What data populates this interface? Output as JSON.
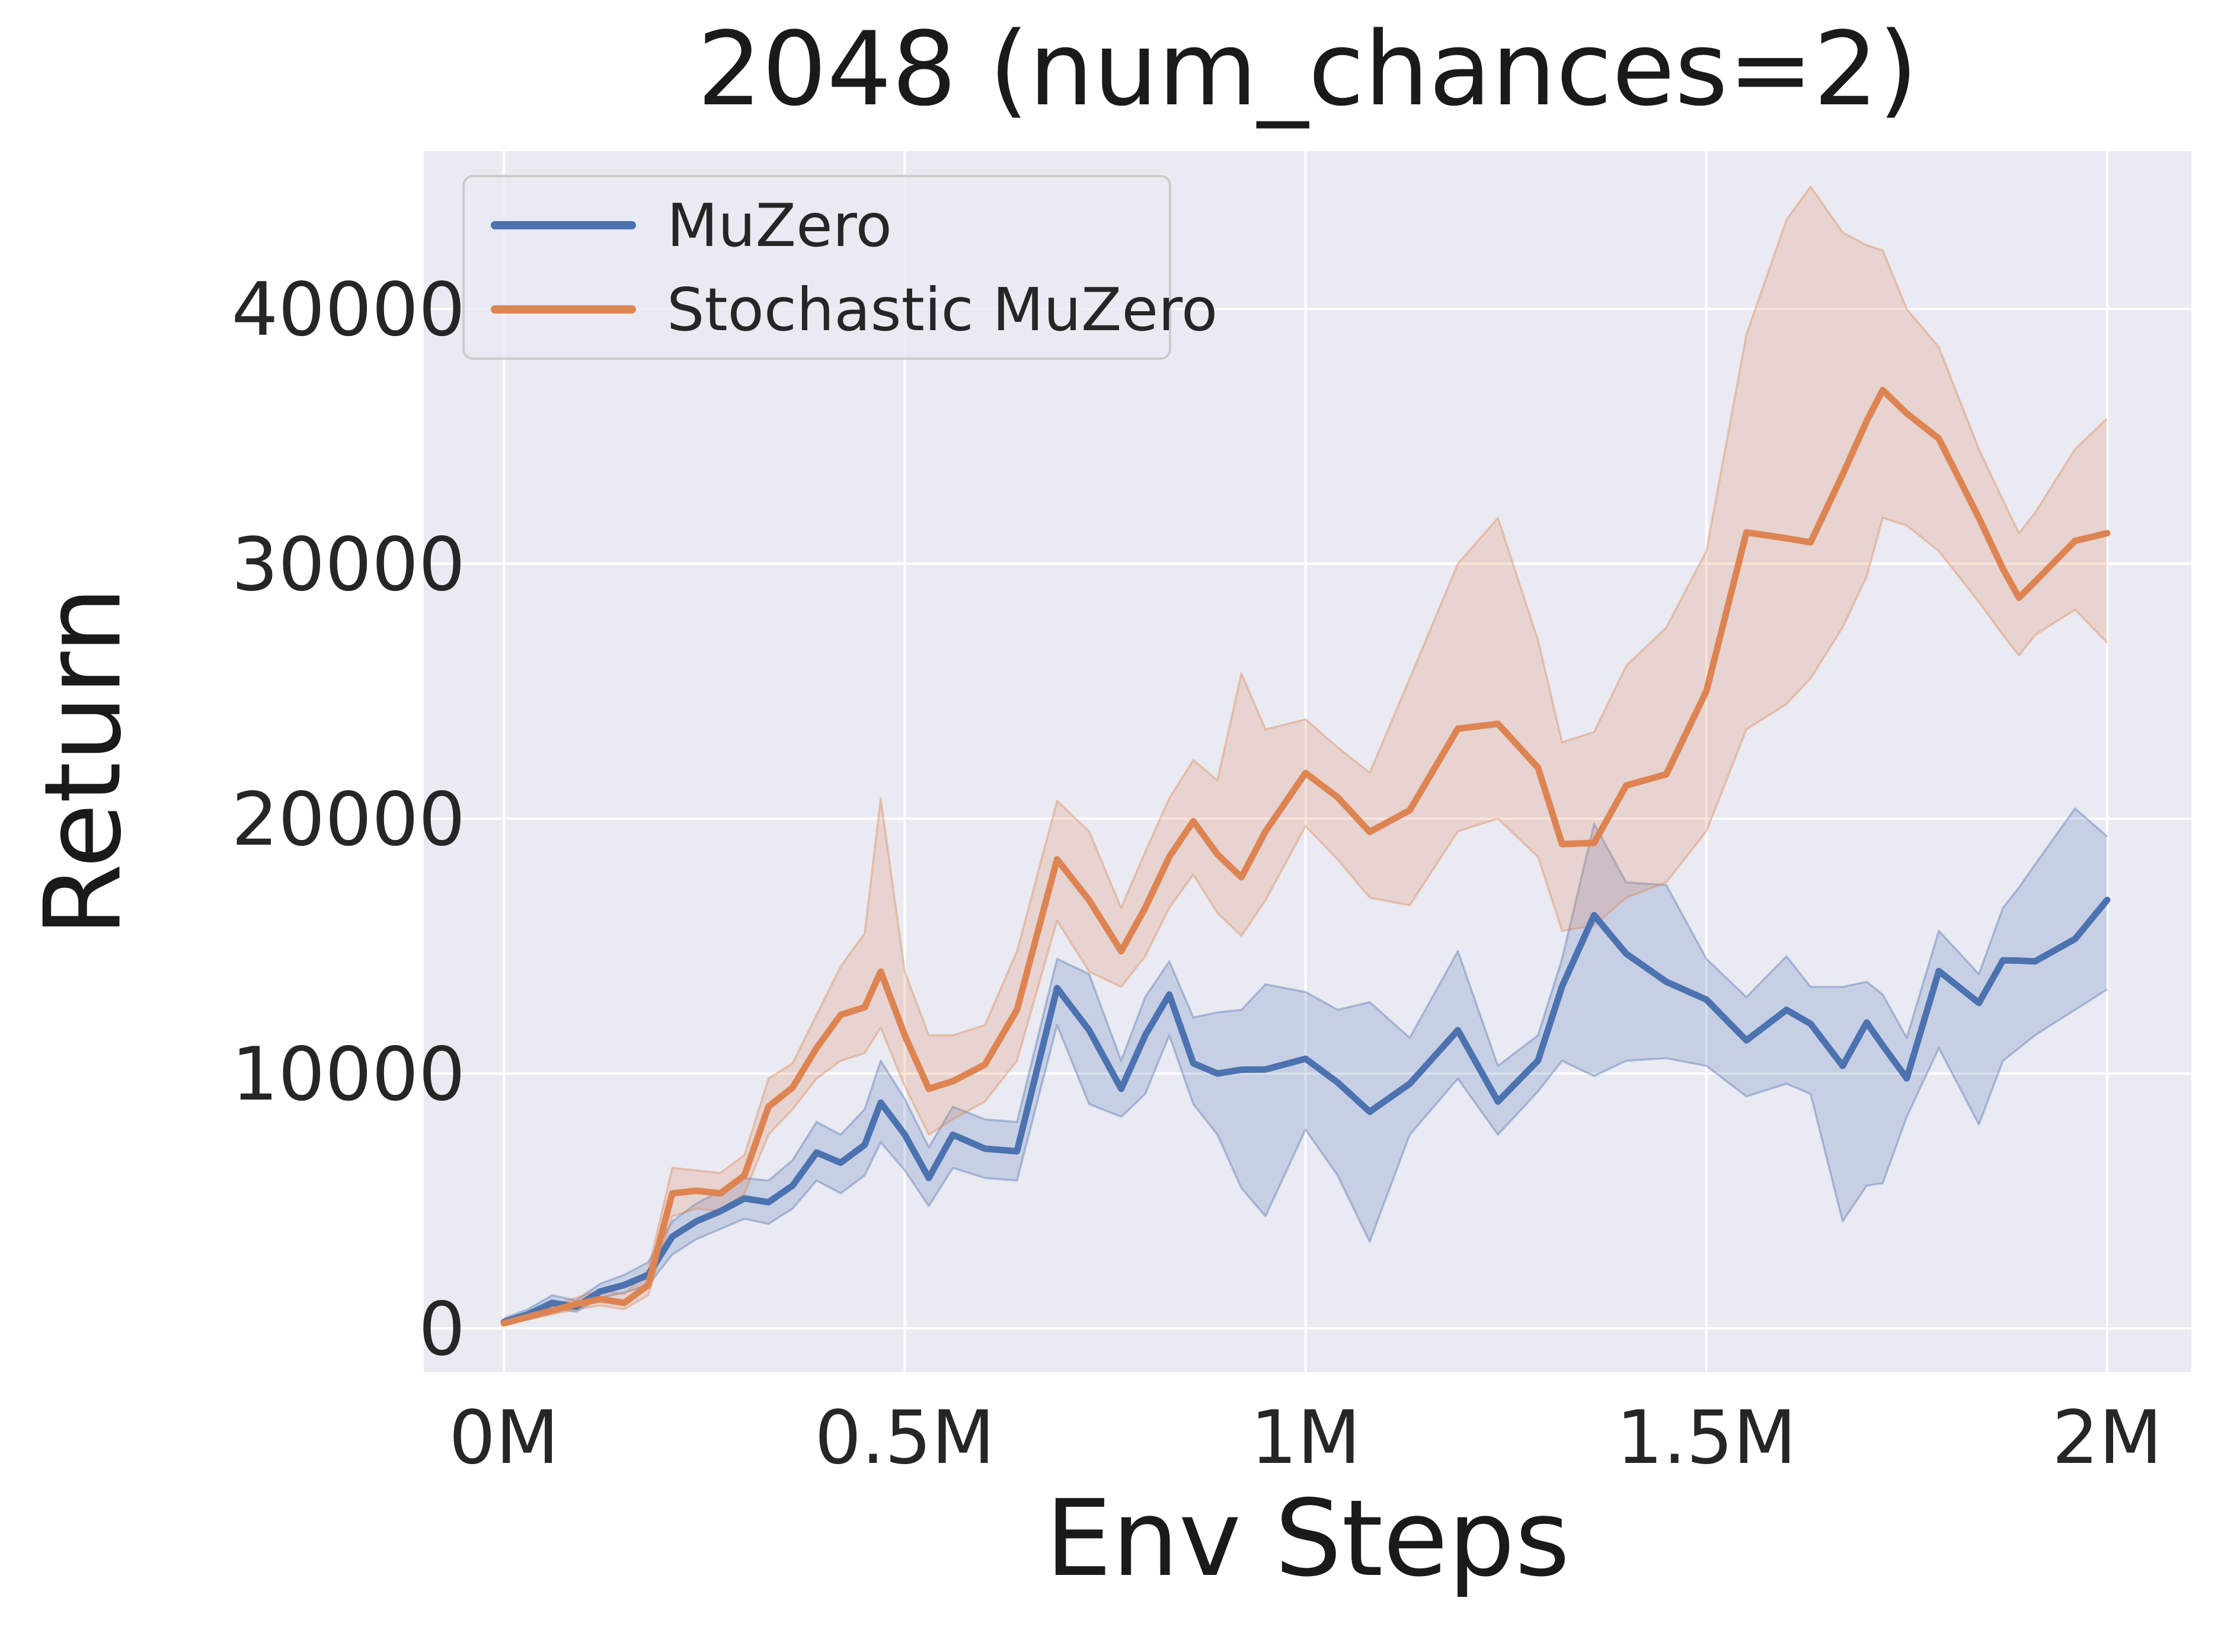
{
  "figure": {
    "title": "2048 (num_chances=2)",
    "xlabel": "Env Steps",
    "ylabel": "Return",
    "background_color": "#ffffff",
    "panel_color": "#eaeaf2",
    "grid_color": "#ffffff",
    "text_color": "#262626"
  },
  "legend": {
    "items": [
      {
        "label": "MuZero",
        "color": "#4c72b0"
      },
      {
        "label": "Stochastic MuZero",
        "color": "#dd8452"
      }
    ]
  },
  "chart_data": {
    "type": "line",
    "title": "2048 (num_chances=2)",
    "xlabel": "Env Steps",
    "ylabel": "Return",
    "grid": true,
    "legend_position": "upper left",
    "x_tick_values": [
      0,
      0.5,
      1,
      1.5,
      2
    ],
    "x_tick_labels": [
      "0M",
      "0.5M",
      "1M",
      "1.5M",
      "2M"
    ],
    "y_tick_values": [
      0,
      10000,
      20000,
      30000,
      40000
    ],
    "y_tick_labels": [
      "0",
      "10000",
      "20000",
      "30000",
      "40000"
    ],
    "xlim": [
      -0.1,
      2.105
    ],
    "ylim": [
      -1720,
      46190
    ],
    "x_units": "millions of env steps",
    "x": [
      0,
      0.03,
      0.06,
      0.09,
      0.12,
      0.15,
      0.18,
      0.21,
      0.24,
      0.27,
      0.3,
      0.33,
      0.36,
      0.39,
      0.42,
      0.45,
      0.47,
      0.5,
      0.53,
      0.56,
      0.6,
      0.64,
      0.69,
      0.73,
      0.77,
      0.8,
      0.83,
      0.86,
      0.89,
      0.92,
      0.95,
      1.0,
      1.04,
      1.08,
      1.13,
      1.19,
      1.24,
      1.29,
      1.32,
      1.36,
      1.4,
      1.45,
      1.5,
      1.55,
      1.6,
      1.63,
      1.67,
      1.7,
      1.72,
      1.75,
      1.79,
      1.84,
      1.87,
      1.89,
      1.91,
      1.96,
      2.0
    ],
    "series": [
      {
        "name": "MuZero",
        "color": "#4c72b0",
        "values": [
          250,
          550,
          1000,
          850,
          1450,
          1700,
          2100,
          3600,
          4200,
          4600,
          5100,
          4950,
          5600,
          6900,
          6500,
          7200,
          8860,
          7600,
          5900,
          7600,
          7050,
          6950,
          13350,
          11700,
          9400,
          11500,
          13100,
          10400,
          10000,
          10150,
          10160,
          10580,
          9650,
          8500,
          9600,
          11700,
          8900,
          10510,
          13420,
          16210,
          14700,
          13600,
          12900,
          11300,
          12500,
          11950,
          10300,
          12000,
          11100,
          9810,
          14020,
          12770,
          14440,
          14430,
          14400,
          15280,
          16810
        ],
        "lo": [
          150,
          400,
          800,
          650,
          1200,
          1400,
          1700,
          2900,
          3500,
          3900,
          4300,
          4100,
          4700,
          5800,
          5300,
          6000,
          7300,
          6200,
          4800,
          6300,
          5900,
          5800,
          11900,
          8800,
          8300,
          9200,
          11500,
          8800,
          7600,
          5500,
          4400,
          7800,
          6000,
          3400,
          7600,
          9800,
          7600,
          9300,
          10500,
          9900,
          10500,
          10600,
          10300,
          9100,
          9600,
          9200,
          4200,
          5600,
          5700,
          8300,
          11000,
          8000,
          10500,
          11000,
          11500,
          12500,
          13300
        ],
        "hi": [
          400,
          750,
          1300,
          1100,
          1750,
          2100,
          2600,
          4200,
          4900,
          5400,
          5900,
          5800,
          6600,
          8100,
          7600,
          8600,
          10500,
          9000,
          7100,
          8700,
          8200,
          8100,
          14500,
          13900,
          10500,
          13000,
          14400,
          12200,
          12400,
          12500,
          13500,
          13200,
          12500,
          12800,
          11400,
          14800,
          10300,
          11500,
          14500,
          19800,
          17500,
          17400,
          14500,
          13000,
          14600,
          13400,
          13400,
          13600,
          13100,
          11400,
          15600,
          13900,
          16500,
          17300,
          18200,
          20400,
          19300
        ]
      },
      {
        "name": "Stochastic MuZero",
        "color": "#dd8452",
        "values": [
          200,
          450,
          700,
          950,
          1150,
          1000,
          1700,
          5300,
          5400,
          5300,
          6000,
          8700,
          9450,
          11000,
          12300,
          12600,
          14000,
          11500,
          9400,
          9700,
          10350,
          12500,
          18400,
          16800,
          14800,
          16500,
          18500,
          19900,
          18600,
          17700,
          19500,
          21790,
          20840,
          19480,
          20330,
          23530,
          23720,
          22000,
          19000,
          19050,
          21300,
          21740,
          25000,
          31230,
          31000,
          30840,
          33500,
          35600,
          36810,
          35900,
          34910,
          31800,
          29800,
          28670,
          29300,
          30900,
          31200
        ],
        "lo": [
          120,
          350,
          550,
          750,
          900,
          750,
          1300,
          4400,
          4700,
          4600,
          5300,
          7600,
          8600,
          9800,
          10500,
          10800,
          11800,
          9500,
          7600,
          8200,
          8900,
          10500,
          16000,
          14000,
          13400,
          14600,
          16500,
          17800,
          16300,
          15400,
          16800,
          19700,
          18400,
          16900,
          16600,
          19500,
          20000,
          18500,
          15600,
          15800,
          16900,
          17500,
          19500,
          23500,
          24500,
          25500,
          27500,
          29500,
          31800,
          31500,
          30500,
          28500,
          27200,
          26400,
          27200,
          28200,
          26900
        ],
        "hi": [
          300,
          600,
          900,
          1200,
          1500,
          1350,
          2300,
          6300,
          6200,
          6100,
          6800,
          9800,
          10400,
          12300,
          14200,
          15500,
          20800,
          14000,
          11500,
          11500,
          11900,
          14800,
          20700,
          19500,
          16500,
          18700,
          20800,
          22300,
          21500,
          25700,
          23500,
          23900,
          22800,
          21800,
          25500,
          30000,
          31800,
          27000,
          23000,
          23400,
          26000,
          27500,
          30500,
          39000,
          43500,
          44800,
          43000,
          42500,
          42300,
          40000,
          38500,
          34500,
          32500,
          31200,
          32000,
          34500,
          35700
        ]
      }
    ]
  }
}
